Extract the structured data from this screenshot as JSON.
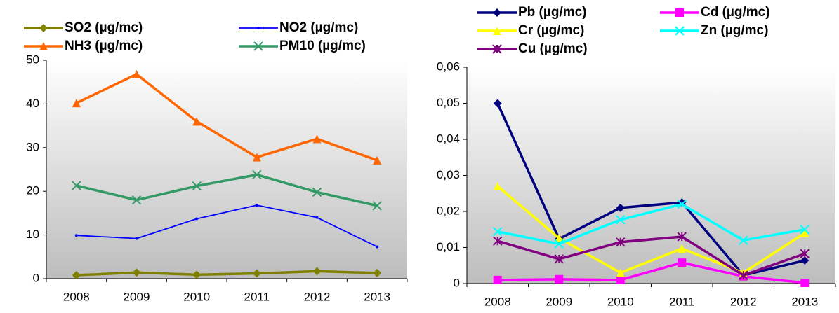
{
  "chart_data": [
    {
      "type": "line",
      "categories": [
        "2008",
        "2009",
        "2010",
        "2011",
        "2012",
        "2013"
      ],
      "ylim": [
        0,
        50
      ],
      "yticks": [
        0,
        10,
        20,
        30,
        40,
        50
      ],
      "grid": false,
      "series": [
        {
          "name": "SO2 (µg/mc)",
          "color": "#808000",
          "marker": "diamond",
          "values": [
            0.8,
            1.4,
            0.9,
            1.2,
            1.7,
            1.3
          ]
        },
        {
          "name": "NO2 (µg/mc)",
          "color": "#0000ff",
          "marker": "dot",
          "values": [
            9.9,
            9.2,
            13.7,
            16.8,
            14.0,
            7.3
          ]
        },
        {
          "name": "NH3 (µg/mc)",
          "color": "#ff6600",
          "marker": "triangle",
          "values": [
            40.2,
            46.8,
            36.0,
            27.8,
            32.0,
            27.1
          ]
        },
        {
          "name": "PM10 (µg/mc)",
          "color": "#339966",
          "marker": "x",
          "values": [
            21.3,
            18.0,
            21.2,
            23.8,
            19.8,
            16.7
          ]
        }
      ]
    },
    {
      "type": "line",
      "categories": [
        "2008",
        "2009",
        "2010",
        "2011",
        "2012",
        "2013"
      ],
      "ylim": [
        0,
        0.06
      ],
      "yticks": [
        0,
        {
          "value": 0.01,
          "label": "0,01"
        },
        {
          "value": 0.02,
          "label": "0,02"
        },
        {
          "value": 0.03,
          "label": "0,03"
        },
        {
          "value": 0.04,
          "label": "0,04"
        },
        {
          "value": 0.05,
          "label": "0,05"
        },
        {
          "value": 0.06,
          "label": "0,06"
        }
      ],
      "grid": false,
      "series": [
        {
          "name": "Pb (µg/mc)",
          "color": "#000080",
          "marker": "diamond",
          "values": [
            0.05,
            0.0124,
            0.021,
            0.0225,
            0.0023,
            0.0064
          ]
        },
        {
          "name": "Cd (µg/mc)",
          "color": "#ff00ff",
          "marker": "square",
          "values": [
            0.001,
            0.0012,
            0.001,
            0.0058,
            0.002,
            0.0002
          ]
        },
        {
          "name": "Cr (µg/mc)",
          "color": "#ffff00",
          "marker": "triangle",
          "values": [
            0.027,
            0.0126,
            0.003,
            0.0097,
            0.003,
            0.014
          ]
        },
        {
          "name": "Zn (µg/mc)",
          "color": "#00ffff",
          "marker": "x",
          "values": [
            0.0144,
            0.011,
            0.0177,
            0.022,
            0.012,
            0.015
          ]
        },
        {
          "name": "Cu (µg/mc)",
          "color": "#800080",
          "marker": "star",
          "values": [
            0.0118,
            0.0068,
            0.0115,
            0.013,
            0.0023,
            0.0083
          ]
        }
      ]
    }
  ]
}
